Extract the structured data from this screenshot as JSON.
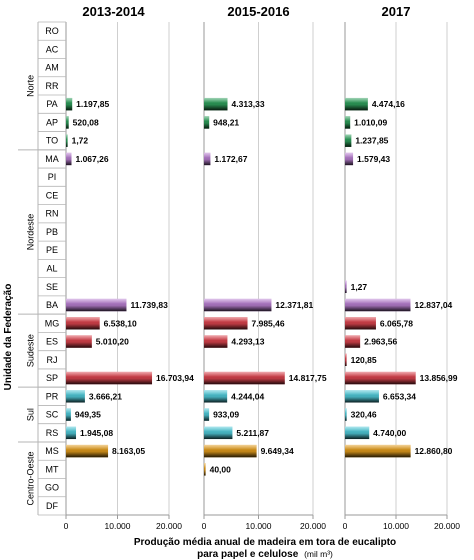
{
  "chart_data": {
    "type": "bar",
    "orientation": "horizontal",
    "y_axis_title": "Unidade da Federação",
    "x_axis_title_line1": "Produção média anual de madeira em tora de eucalipto",
    "x_axis_title_line2": "para papel e celulose",
    "x_axis_unit": "(mil m³)",
    "xlim": [
      0,
      20000
    ],
    "x_ticks": [
      "0",
      "10.000",
      "20.000"
    ],
    "grid": true,
    "groups": [
      "Norte",
      "Nordeste",
      "Sudeste",
      "Sul",
      "Centro-Oeste"
    ],
    "categories": [
      "RO",
      "AC",
      "AM",
      "RR",
      "PA",
      "AP",
      "TO",
      "MA",
      "PI",
      "CE",
      "RN",
      "PB",
      "PE",
      "AL",
      "SE",
      "BA",
      "MG",
      "ES",
      "RJ",
      "SP",
      "PR",
      "SC",
      "RS",
      "MS",
      "MT",
      "GO",
      "DF"
    ],
    "category_groups": [
      "Norte",
      "Norte",
      "Norte",
      "Norte",
      "Norte",
      "Norte",
      "Norte",
      "Nordeste",
      "Nordeste",
      "Nordeste",
      "Nordeste",
      "Nordeste",
      "Nordeste",
      "Nordeste",
      "Nordeste",
      "Nordeste",
      "Sudeste",
      "Sudeste",
      "Sudeste",
      "Sudeste",
      "Sul",
      "Sul",
      "Sul",
      "Centro-Oeste",
      "Centro-Oeste",
      "Centro-Oeste",
      "Centro-Oeste"
    ],
    "group_colors": {
      "Norte": "#2e9e5b",
      "Nordeste": "#b87fd0",
      "Sudeste": "#d9434d",
      "Sul": "#4fc9d8",
      "Centro-Oeste": "#e09a1c"
    },
    "series": [
      {
        "name": "2013-2014",
        "values": [
          null,
          null,
          null,
          null,
          1197.85,
          520.08,
          1.72,
          1067.26,
          null,
          null,
          null,
          null,
          null,
          null,
          null,
          11739.83,
          6538.1,
          5010.2,
          null,
          16703.94,
          3666.21,
          949.35,
          1945.08,
          8163.05,
          null,
          null,
          null
        ],
        "labels": [
          null,
          null,
          null,
          null,
          "1.197,85",
          "520,08",
          "1,72",
          "1.067,26",
          null,
          null,
          null,
          null,
          null,
          null,
          null,
          "11.739,83",
          "6.538,10",
          "5.010,20",
          null,
          "16.703,94",
          "3.666,21",
          "949,35",
          "1.945,08",
          "8.163,05",
          null,
          null,
          null
        ]
      },
      {
        "name": "2015-2016",
        "values": [
          null,
          null,
          null,
          null,
          4313.33,
          948.21,
          null,
          1172.67,
          null,
          null,
          null,
          null,
          null,
          null,
          null,
          12371.81,
          7985.46,
          4293.13,
          null,
          14817.75,
          4244.04,
          933.09,
          5211.87,
          9649.34,
          40.0,
          null,
          null
        ],
        "labels": [
          null,
          null,
          null,
          null,
          "4.313,33",
          "948,21",
          null,
          "1.172,67",
          null,
          null,
          null,
          null,
          null,
          null,
          null,
          "12.371,81",
          "7.985,46",
          "4.293,13",
          null,
          "14.817,75",
          "4.244,04",
          "933,09",
          "5.211,87",
          "9.649,34",
          "40,00",
          null,
          null
        ]
      },
      {
        "name": "2017",
        "values": [
          null,
          null,
          null,
          null,
          4474.16,
          1010.09,
          1237.85,
          1579.43,
          null,
          null,
          null,
          null,
          null,
          null,
          1.27,
          12837.04,
          6065.78,
          2963.56,
          120.85,
          13856.99,
          6653.34,
          320.46,
          4740.0,
          12860.8,
          null,
          null,
          null
        ],
        "labels": [
          null,
          null,
          null,
          null,
          "4.474,16",
          "1.010,09",
          "1.237,85",
          "1.579,43",
          null,
          null,
          null,
          null,
          null,
          null,
          "1,27",
          "12.837,04",
          "6.065,78",
          "2.963,56",
          "120,85",
          "13.856,99",
          "6.653,34",
          "320,46",
          "4.740,00",
          "12.860,80",
          null,
          null,
          null
        ]
      }
    ]
  }
}
